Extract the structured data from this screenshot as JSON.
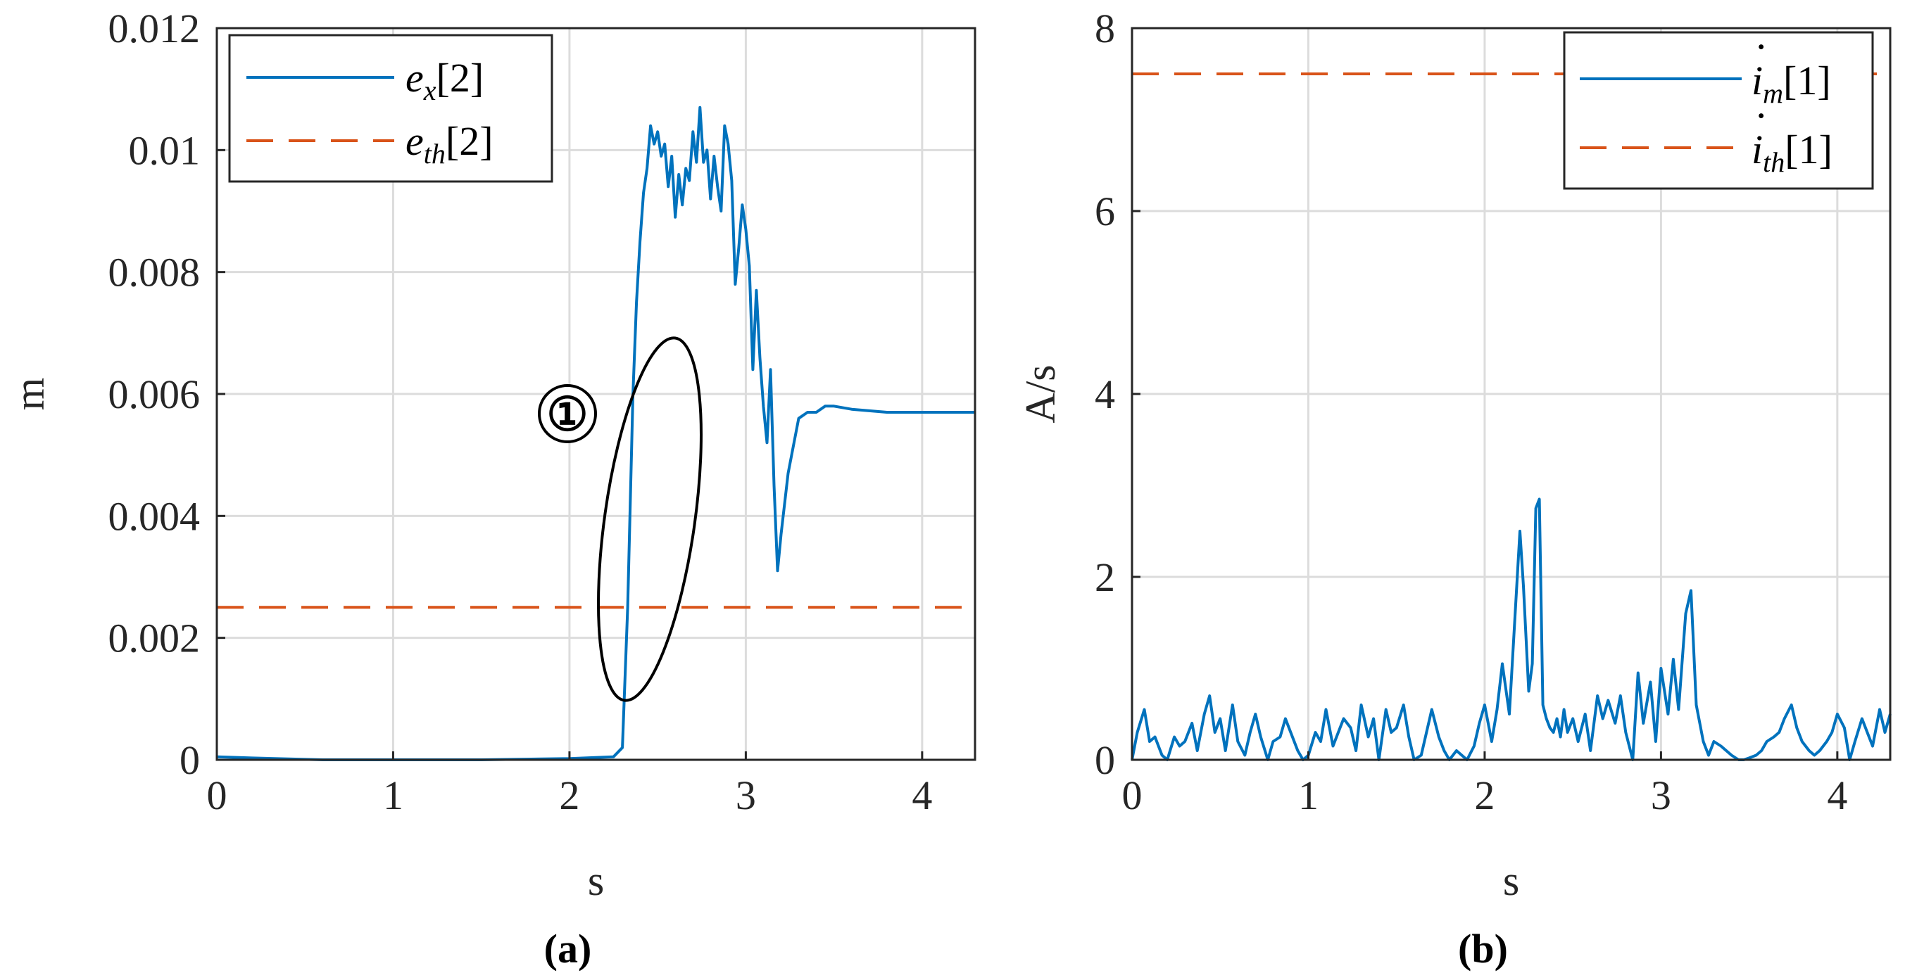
{
  "chart_data": [
    {
      "type": "line",
      "caption": "(a)",
      "xlabel": "s",
      "ylabel": "m",
      "xlim": [
        0,
        4.3
      ],
      "ylim": [
        0,
        0.012
      ],
      "xticks": [
        0,
        1,
        2,
        3,
        4
      ],
      "xtick_labels": [
        "0",
        "1",
        "2",
        "3",
        "4"
      ],
      "yticks": [
        0,
        0.002,
        0.004,
        0.006,
        0.008,
        0.01,
        0.012
      ],
      "ytick_labels": [
        "0",
        "0.002",
        "0.004",
        "0.006",
        "0.008",
        "0.01",
        "0.012"
      ],
      "grid": true,
      "legend_position": "top-left",
      "annotation": "①",
      "series": [
        {
          "name": "e_x[2]",
          "legend_base": "e",
          "legend_sub": "x",
          "legend_suffix": "[2]",
          "color": "#0072BD",
          "style": "solid",
          "x": [
            0,
            0.2,
            0.6,
            1.0,
            1.5,
            2.0,
            2.25,
            2.3,
            2.33,
            2.36,
            2.38,
            2.4,
            2.42,
            2.44,
            2.46,
            2.48,
            2.5,
            2.52,
            2.54,
            2.56,
            2.58,
            2.6,
            2.62,
            2.64,
            2.66,
            2.68,
            2.7,
            2.72,
            2.74,
            2.76,
            2.78,
            2.8,
            2.82,
            2.84,
            2.86,
            2.88,
            2.9,
            2.92,
            2.94,
            2.96,
            2.98,
            3.0,
            3.02,
            3.04,
            3.06,
            3.08,
            3.1,
            3.12,
            3.14,
            3.16,
            3.18,
            3.2,
            3.24,
            3.3,
            3.35,
            3.4,
            3.45,
            3.5,
            3.6,
            3.8,
            4.0,
            4.3
          ],
          "y": [
            5e-05,
            3e-05,
            0.0,
            0.0,
            0.0,
            2e-05,
            5e-05,
            0.0002,
            0.0025,
            0.006,
            0.0075,
            0.0085,
            0.0093,
            0.0097,
            0.0104,
            0.0101,
            0.0103,
            0.0099,
            0.0101,
            0.0094,
            0.0099,
            0.0089,
            0.0096,
            0.0091,
            0.0097,
            0.0095,
            0.0103,
            0.0098,
            0.0107,
            0.0098,
            0.01,
            0.0092,
            0.0099,
            0.0094,
            0.009,
            0.0104,
            0.0101,
            0.0095,
            0.0078,
            0.0084,
            0.0091,
            0.0087,
            0.0081,
            0.0064,
            0.0077,
            0.0066,
            0.0058,
            0.0052,
            0.0064,
            0.0045,
            0.0031,
            0.0037,
            0.0047,
            0.0056,
            0.0057,
            0.0057,
            0.0058,
            0.0058,
            0.00575,
            0.0057,
            0.0057,
            0.0057
          ]
        },
        {
          "name": "e_th[2]",
          "legend_base": "e",
          "legend_sub": "th",
          "legend_suffix": "[2]",
          "color": "#D95319",
          "style": "dashed",
          "x": [
            0,
            4.3
          ],
          "y": [
            0.0025,
            0.0025
          ]
        }
      ]
    },
    {
      "type": "line",
      "caption": "(b)",
      "xlabel": "s",
      "ylabel": "A/s",
      "xlim": [
        0,
        4.3
      ],
      "ylim": [
        0,
        8
      ],
      "xticks": [
        0,
        1,
        2,
        3,
        4
      ],
      "xtick_labels": [
        "0",
        "1",
        "2",
        "3",
        "4"
      ],
      "yticks": [
        0,
        2,
        4,
        6,
        8
      ],
      "ytick_labels": [
        "0",
        "2",
        "4",
        "6",
        "8"
      ],
      "grid": true,
      "legend_position": "top-right",
      "series": [
        {
          "name": "i̇_m[1]",
          "legend_base": "i",
          "legend_sub": "m",
          "legend_suffix": "[1]",
          "color": "#0072BD",
          "style": "solid",
          "x": [
            0,
            0.03,
            0.07,
            0.1,
            0.13,
            0.17,
            0.2,
            0.24,
            0.27,
            0.3,
            0.34,
            0.37,
            0.41,
            0.44,
            0.47,
            0.5,
            0.53,
            0.57,
            0.6,
            0.64,
            0.67,
            0.7,
            0.73,
            0.77,
            0.8,
            0.84,
            0.87,
            0.9,
            0.94,
            0.97,
            1.0,
            1.04,
            1.07,
            1.1,
            1.14,
            1.17,
            1.2,
            1.24,
            1.27,
            1.3,
            1.34,
            1.37,
            1.4,
            1.44,
            1.47,
            1.5,
            1.54,
            1.57,
            1.6,
            1.64,
            1.67,
            1.7,
            1.74,
            1.77,
            1.8,
            1.84,
            1.87,
            1.9,
            1.94,
            1.97,
            2.0,
            2.04,
            2.07,
            2.1,
            2.14,
            2.17,
            2.2,
            2.22,
            2.25,
            2.27,
            2.29,
            2.31,
            2.33,
            2.35,
            2.37,
            2.39,
            2.41,
            2.43,
            2.45,
            2.47,
            2.5,
            2.53,
            2.57,
            2.6,
            2.64,
            2.67,
            2.7,
            2.74,
            2.77,
            2.8,
            2.84,
            2.87,
            2.9,
            2.94,
            2.97,
            3.0,
            3.04,
            3.07,
            3.1,
            3.14,
            3.17,
            3.2,
            3.24,
            3.27,
            3.3,
            3.34,
            3.37,
            3.4,
            3.44,
            3.47,
            3.5,
            3.54,
            3.57,
            3.6,
            3.64,
            3.67,
            3.7,
            3.74,
            3.77,
            3.8,
            3.84,
            3.87,
            3.9,
            3.94,
            3.97,
            4.0,
            4.04,
            4.07,
            4.1,
            4.14,
            4.17,
            4.2,
            4.24,
            4.27,
            4.3
          ],
          "y": [
            0.0,
            0.3,
            0.55,
            0.2,
            0.25,
            0.05,
            0.0,
            0.25,
            0.15,
            0.2,
            0.4,
            0.1,
            0.5,
            0.7,
            0.3,
            0.45,
            0.1,
            0.6,
            0.2,
            0.05,
            0.3,
            0.5,
            0.25,
            0.0,
            0.2,
            0.25,
            0.45,
            0.3,
            0.1,
            0.0,
            0.05,
            0.3,
            0.2,
            0.55,
            0.15,
            0.3,
            0.45,
            0.35,
            0.1,
            0.6,
            0.25,
            0.45,
            0.0,
            0.55,
            0.3,
            0.35,
            0.6,
            0.25,
            0.0,
            0.05,
            0.3,
            0.55,
            0.25,
            0.1,
            0.0,
            0.1,
            0.05,
            0.0,
            0.15,
            0.4,
            0.6,
            0.2,
            0.55,
            1.05,
            0.5,
            1.5,
            2.5,
            1.9,
            0.75,
            1.05,
            2.75,
            2.85,
            0.6,
            0.45,
            0.35,
            0.3,
            0.45,
            0.25,
            0.55,
            0.3,
            0.45,
            0.2,
            0.5,
            0.1,
            0.7,
            0.45,
            0.65,
            0.4,
            0.7,
            0.3,
            0.0,
            0.95,
            0.4,
            0.85,
            0.2,
            1.0,
            0.5,
            1.1,
            0.55,
            1.6,
            1.85,
            0.6,
            0.2,
            0.05,
            0.2,
            0.15,
            0.1,
            0.05,
            0.0,
            0.0,
            0.02,
            0.05,
            0.1,
            0.2,
            0.25,
            0.3,
            0.45,
            0.6,
            0.35,
            0.2,
            0.1,
            0.05,
            0.1,
            0.2,
            0.3,
            0.5,
            0.35,
            0.0,
            0.2,
            0.45,
            0.3,
            0.15,
            0.55,
            0.3,
            0.5
          ]
        },
        {
          "name": "i̇_th[1]",
          "legend_base": "i",
          "legend_sub": "th",
          "legend_suffix": "[1]",
          "color": "#D95319",
          "style": "dashed",
          "x": [
            0,
            4.3
          ],
          "y": [
            7.5,
            7.5
          ]
        }
      ]
    }
  ]
}
